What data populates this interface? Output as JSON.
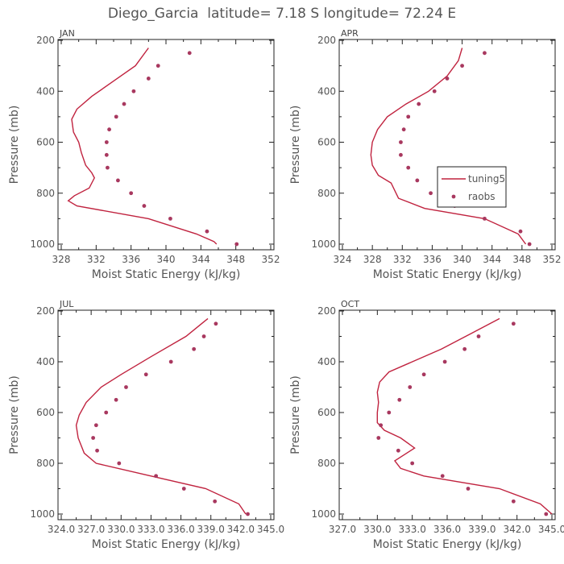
{
  "figure": {
    "title": "Diego_Garcia  latitude= 7.18 S longitude= 72.24 E"
  },
  "colors": {
    "model": "#c0233f",
    "obs": "#a8385f",
    "text": "#555555",
    "axis": "#222222"
  },
  "legend": {
    "model_label": "tuning5",
    "obs_label": "raobs",
    "panel": 1
  },
  "chart_data": [
    {
      "type": "line+scatter",
      "panel_title": "JAN",
      "xlabel": "Moist Static Energy (kJ/kg)",
      "ylabel": "Pressure (mb)",
      "xlim": [
        328,
        352
      ],
      "xticks": [
        328,
        332,
        336,
        340,
        344,
        348,
        352
      ],
      "xtick_labels": [
        "328",
        "332",
        "336",
        "340",
        "344",
        "348",
        "352"
      ],
      "ylim": [
        200,
        1000
      ],
      "yticks": [
        200,
        400,
        600,
        800,
        1000
      ],
      "ytick_labels": [
        "200",
        "400",
        "600",
        "800",
        "1000"
      ],
      "series": [
        {
          "name": "tuning5",
          "style": "line",
          "x": [
            338.0,
            336.5,
            334.0,
            331.5,
            329.8,
            329.2,
            329.4,
            330.0,
            330.3,
            330.8,
            331.5,
            331.8,
            331.2,
            329.5,
            328.8,
            329.8,
            338.0,
            343.5,
            345.5,
            345.8
          ],
          "y": [
            230,
            300,
            360,
            420,
            470,
            510,
            560,
            600,
            640,
            690,
            720,
            740,
            780,
            810,
            830,
            850,
            900,
            960,
            990,
            1000
          ]
        },
        {
          "name": "raobs",
          "style": "scatter",
          "x": [
            342.7,
            339.1,
            338.0,
            336.3,
            335.2,
            334.3,
            333.5,
            333.2,
            333.2,
            333.3,
            334.5,
            336.0,
            337.5,
            340.5,
            344.7,
            348.1
          ],
          "y": [
            250,
            300,
            350,
            400,
            450,
            500,
            550,
            600,
            650,
            700,
            750,
            800,
            850,
            900,
            950,
            1000
          ]
        }
      ]
    },
    {
      "type": "line+scatter",
      "panel_title": "APR",
      "xlabel": "Moist Static Energy (kJ/kg)",
      "ylabel": "Pressure (mb)",
      "xlim": [
        324,
        352
      ],
      "xticks": [
        324,
        328,
        332,
        336,
        340,
        344,
        348,
        352
      ],
      "xtick_labels": [
        "324",
        "328",
        "332",
        "336",
        "340",
        "344",
        "348",
        "352"
      ],
      "ylim": [
        200,
        1000
      ],
      "yticks": [
        200,
        400,
        600,
        800,
        1000
      ],
      "ytick_labels": [
        "200",
        "400",
        "600",
        "800",
        "1000"
      ],
      "series": [
        {
          "name": "tuning5",
          "style": "line",
          "x": [
            340.0,
            339.5,
            338.0,
            335.5,
            332.5,
            330.0,
            328.7,
            328.0,
            327.8,
            328.0,
            328.8,
            330.5,
            331.5,
            335.0,
            343.0,
            347.5,
            348.5
          ],
          "y": [
            230,
            280,
            340,
            400,
            450,
            500,
            550,
            600,
            650,
            690,
            730,
            760,
            820,
            860,
            900,
            960,
            1000
          ]
        },
        {
          "name": "raobs",
          "style": "scatter",
          "x": [
            343.0,
            340.0,
            338.0,
            336.3,
            334.2,
            332.8,
            332.2,
            331.8,
            331.8,
            332.8,
            334.0,
            335.8,
            339.0,
            343.0,
            347.8,
            349.0
          ],
          "y": [
            250,
            300,
            350,
            400,
            450,
            500,
            550,
            600,
            650,
            700,
            750,
            800,
            850,
            900,
            950,
            1000
          ]
        }
      ]
    },
    {
      "type": "line+scatter",
      "panel_title": "JUL",
      "xlabel": "Moist Static Energy (kJ/kg)",
      "ylabel": "Pressure (mb)",
      "xlim": [
        324.0,
        345.0
      ],
      "xticks": [
        324.0,
        327.0,
        330.0,
        333.0,
        336.0,
        339.0,
        342.0,
        345.0
      ],
      "xtick_labels": [
        "324.0",
        "327.0",
        "330.0",
        "333.0",
        "336.0",
        "339.0",
        "342.0",
        "345.0"
      ],
      "ylim": [
        200,
        1000
      ],
      "yticks": [
        200,
        400,
        600,
        800,
        1000
      ],
      "ytick_labels": [
        "200",
        "400",
        "600",
        "800",
        "1000"
      ],
      "series": [
        {
          "name": "tuning5",
          "style": "line",
          "x": [
            338.7,
            336.5,
            333.0,
            330.0,
            328.0,
            326.5,
            325.8,
            325.5,
            325.7,
            326.3,
            327.5,
            333.0,
            338.5,
            341.8,
            342.5
          ],
          "y": [
            230,
            300,
            380,
            450,
            500,
            560,
            610,
            650,
            700,
            760,
            800,
            850,
            900,
            960,
            1000
          ]
        },
        {
          "name": "raobs",
          "style": "scatter",
          "x": [
            339.5,
            338.3,
            337.3,
            335.0,
            332.5,
            330.5,
            329.5,
            328.5,
            327.5,
            327.2,
            327.6,
            329.8,
            333.5,
            336.3,
            339.4,
            342.7
          ],
          "y": [
            250,
            300,
            350,
            400,
            450,
            500,
            550,
            600,
            650,
            700,
            750,
            800,
            850,
            900,
            950,
            1000
          ]
        }
      ]
    },
    {
      "type": "line+scatter",
      "panel_title": "OCT",
      "xlabel": "Moist Static Energy (kJ/kg)",
      "ylabel": "Pressure (mb)",
      "xlim": [
        327.0,
        345.0
      ],
      "xticks": [
        327.0,
        330.0,
        333.0,
        336.0,
        339.0,
        342.0,
        345.0
      ],
      "xtick_labels": [
        "327.0",
        "330.0",
        "333.0",
        "336.0",
        "339.0",
        "342.0",
        "345.0"
      ],
      "ylim": [
        200,
        1000
      ],
      "yticks": [
        200,
        400,
        600,
        800,
        1000
      ],
      "ytick_labels": [
        "200",
        "400",
        "600",
        "800",
        "1000"
      ],
      "series": [
        {
          "name": "tuning5",
          "style": "line",
          "x": [
            340.5,
            338.0,
            335.5,
            333.0,
            331.0,
            330.2,
            330.0,
            330.1,
            330.0,
            330.0,
            330.6,
            332.0,
            333.2,
            331.5,
            332.0,
            334.0,
            340.5,
            344.0,
            345.0
          ],
          "y": [
            230,
            290,
            350,
            400,
            440,
            480,
            520,
            560,
            600,
            640,
            670,
            700,
            740,
            790,
            820,
            850,
            900,
            960,
            1000
          ]
        },
        {
          "name": "raobs",
          "style": "scatter",
          "x": [
            341.7,
            338.7,
            337.5,
            335.8,
            334.0,
            332.8,
            331.9,
            331.0,
            330.3,
            330.1,
            331.8,
            333.0,
            335.6,
            337.8,
            341.7,
            344.5
          ],
          "y": [
            250,
            300,
            350,
            400,
            450,
            500,
            550,
            600,
            650,
            700,
            750,
            800,
            850,
            900,
            950,
            1000
          ]
        }
      ]
    }
  ]
}
